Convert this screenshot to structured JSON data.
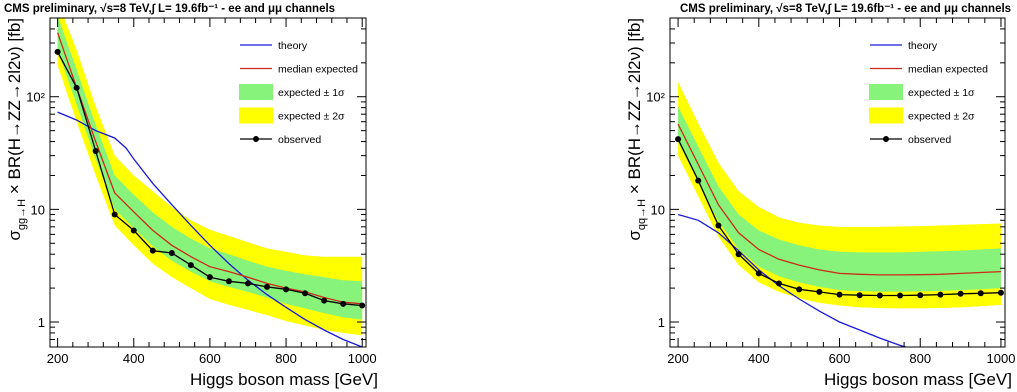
{
  "chart_data": [
    {
      "type": "line",
      "title": "CMS preliminary,  √s=8 TeV,∫ L=  19.6fb⁻¹ - ee and μμ channels",
      "xlabel": "Higgs boson mass [GeV]",
      "ylabel": "σgg→H × BR(H→ZZ→2l2ν) [fb]",
      "ylabel_parts": [
        "σ",
        "gg→H",
        " × BR(H→ZZ→2l2ν) [fb]"
      ],
      "yscale": "log",
      "xlim": [
        180,
        1010
      ],
      "ylim": [
        0.6,
        500
      ],
      "xticks": [
        200,
        400,
        600,
        800,
        1000
      ],
      "xtick_labels": [
        "200",
        "400",
        "600",
        "800",
        "1000"
      ],
      "yticks": [
        1,
        10,
        100
      ],
      "ytick_labels": [
        "1",
        "10",
        "10²"
      ],
      "legend_position": "top-right",
      "legend": [
        "theory",
        "median expected",
        "expected ± 1σ",
        "expected ± 2σ",
        "observed"
      ],
      "colors": {
        "theory": "#1a1ad9",
        "median": "#cc2a18",
        "band1": "#88f37a",
        "band2": "#ffff00",
        "observed": "#000000"
      },
      "x": [
        200,
        250,
        300,
        350,
        400,
        450,
        500,
        550,
        600,
        650,
        700,
        750,
        800,
        850,
        900,
        950,
        1000
      ],
      "series": [
        {
          "name": "theory",
          "x": [
            200,
            250,
            300,
            350,
            380,
            400,
            450,
            500,
            550,
            600,
            650,
            700,
            750,
            800,
            850,
            900,
            950,
            1000
          ],
          "values": [
            73,
            62,
            50,
            43,
            35,
            28,
            17,
            11,
            7.2,
            4.8,
            3.3,
            2.35,
            1.75,
            1.35,
            1.05,
            0.85,
            0.7,
            0.6
          ]
        },
        {
          "name": "median expected",
          "values": [
            370,
            120,
            40,
            14,
            9.5,
            6.5,
            4.8,
            3.8,
            3.1,
            2.8,
            2.5,
            2.2,
            2.0,
            1.85,
            1.65,
            1.5,
            1.45
          ]
        },
        {
          "name": "expected ± 1σ low",
          "values": [
            260,
            85,
            28,
            10,
            6.8,
            4.7,
            3.5,
            2.8,
            2.3,
            2.05,
            1.85,
            1.65,
            1.45,
            1.32,
            1.2,
            1.1,
            1.05
          ]
        },
        {
          "name": "expected ± 1σ high",
          "values": [
            520,
            175,
            56,
            20,
            13.5,
            9.4,
            7.0,
            5.5,
            4.5,
            4.0,
            3.5,
            3.1,
            2.85,
            2.65,
            2.5,
            2.35,
            2.3
          ]
        },
        {
          "name": "expected ± 2σ low",
          "values": [
            190,
            60,
            20,
            7.2,
            4.8,
            3.3,
            2.5,
            2.0,
            1.6,
            1.42,
            1.28,
            1.15,
            1.02,
            0.93,
            0.85,
            0.8,
            0.76
          ]
        },
        {
          "name": "expected ± 2σ high",
          "values": [
            700,
            260,
            82,
            30,
            20,
            14.5,
            10.5,
            8.0,
            6.6,
            5.8,
            5.1,
            4.5,
            4.2,
            3.9,
            3.8,
            3.8,
            3.8
          ]
        },
        {
          "name": "observed",
          "values": [
            250,
            120,
            33,
            9.0,
            6.5,
            4.3,
            4.1,
            3.2,
            2.5,
            2.3,
            2.2,
            2.05,
            1.95,
            1.8,
            1.55,
            1.45,
            1.4
          ]
        }
      ]
    },
    {
      "type": "line",
      "title": "CMS preliminary,  √s=8 TeV,∫ L=  19.6fb⁻¹ - ee and μμ channels",
      "xlabel": "Higgs boson mass [GeV]",
      "ylabel": "σqq→H × BR(H→ZZ→2l2ν) [fb]",
      "ylabel_parts": [
        "σ",
        "qq→H",
        " × BR(H→ZZ→2l2ν) [fb]"
      ],
      "yscale": "log",
      "xlim": [
        180,
        1010
      ],
      "ylim": [
        0.6,
        500
      ],
      "xticks": [
        200,
        400,
        600,
        800,
        1000
      ],
      "xtick_labels": [
        "200",
        "400",
        "600",
        "800",
        "1000"
      ],
      "yticks": [
        1,
        10,
        100
      ],
      "ytick_labels": [
        "1",
        "10",
        "10²"
      ],
      "legend_position": "top-right",
      "legend": [
        "theory",
        "median expected",
        "expected ± 1σ",
        "expected ± 2σ",
        "observed"
      ],
      "colors": {
        "theory": "#1a1ad9",
        "median": "#cc2a18",
        "band1": "#88f37a",
        "band2": "#ffff00",
        "observed": "#000000"
      },
      "x": [
        200,
        250,
        300,
        350,
        400,
        450,
        500,
        550,
        600,
        650,
        700,
        750,
        800,
        850,
        900,
        950,
        1000
      ],
      "series": [
        {
          "name": "theory",
          "x": [
            200,
            250,
            300,
            350,
            400,
            450,
            500,
            550,
            600,
            650,
            700,
            750,
            800,
            820
          ],
          "values": [
            9.0,
            8.0,
            6.2,
            4.3,
            2.9,
            2.1,
            1.6,
            1.25,
            1.0,
            0.85,
            0.72,
            0.62,
            0.55,
            0.5
          ]
        },
        {
          "name": "median expected",
          "values": [
            57,
            25,
            11,
            6.2,
            4.4,
            3.6,
            3.2,
            2.9,
            2.7,
            2.65,
            2.62,
            2.62,
            2.63,
            2.65,
            2.7,
            2.75,
            2.8
          ]
        },
        {
          "name": "expected ± 1σ low",
          "values": [
            40,
            17.5,
            7.8,
            4.4,
            3.1,
            2.55,
            2.25,
            2.05,
            1.92,
            1.88,
            1.86,
            1.86,
            1.87,
            1.89,
            1.92,
            1.95,
            2.0
          ]
        },
        {
          "name": "expected ± 1σ high",
          "values": [
            82,
            36,
            16,
            9.0,
            6.5,
            5.4,
            4.8,
            4.4,
            4.2,
            4.15,
            4.15,
            4.15,
            4.2,
            4.25,
            4.3,
            4.4,
            4.5
          ]
        },
        {
          "name": "expected ± 2σ low",
          "values": [
            30,
            13,
            5.7,
            3.2,
            2.25,
            1.85,
            1.62,
            1.48,
            1.4,
            1.35,
            1.33,
            1.32,
            1.32,
            1.33,
            1.35,
            1.38,
            1.42
          ]
        },
        {
          "name": "expected ± 2σ high",
          "values": [
            135,
            58,
            26,
            14.5,
            10.5,
            8.5,
            7.6,
            7.2,
            7.0,
            7.0,
            7.0,
            7.05,
            7.1,
            7.2,
            7.3,
            7.4,
            7.5
          ]
        },
        {
          "name": "observed",
          "values": [
            42,
            18,
            7.2,
            4.0,
            2.7,
            2.2,
            1.95,
            1.85,
            1.75,
            1.73,
            1.72,
            1.72,
            1.73,
            1.75,
            1.78,
            1.8,
            1.82
          ]
        }
      ]
    }
  ]
}
